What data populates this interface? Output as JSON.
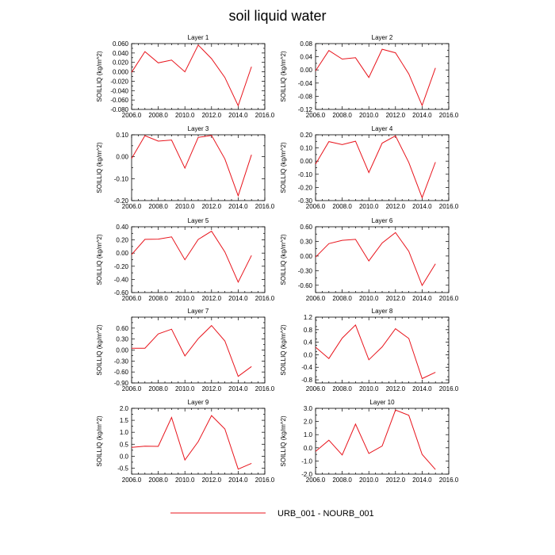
{
  "figure": {
    "title": "soil liquid water",
    "legend": {
      "label": "URB_001 - NOURB_001",
      "color": "#e8141c",
      "placement": "bottom-center"
    }
  },
  "chart_data": [
    {
      "type": "line",
      "title": "Layer 1",
      "ylabel": "SOILLIQ  (kg/m^2)",
      "xlim": [
        2006,
        2016
      ],
      "ylim": [
        -0.08,
        0.06
      ],
      "xticks": [
        "2006.0",
        "2008.0",
        "2010.0",
        "2012.0",
        "2014.0",
        "2016.0"
      ],
      "yticks": [
        "0.060",
        "0.040",
        "0.020",
        "0.000",
        "-0.020",
        "-0.040",
        "-0.060",
        "-0.080"
      ],
      "series": [
        {
          "x": [
            2006,
            2007,
            2008,
            2009,
            2010,
            2011,
            2012,
            2013,
            2014,
            2015
          ],
          "values": [
            -0.001,
            0.043,
            0.019,
            0.025,
            0.0,
            0.057,
            0.028,
            -0.012,
            -0.072,
            0.011
          ]
        }
      ]
    },
    {
      "type": "line",
      "title": "Layer 2",
      "ylabel": "SOILLIQ  (kg/m^2)",
      "xlim": [
        2006,
        2016
      ],
      "ylim": [
        -0.12,
        0.08
      ],
      "xticks": [
        "2006.0",
        "2008.0",
        "2010.0",
        "2012.0",
        "2014.0",
        "2016.0"
      ],
      "yticks": [
        "0.08",
        "0.04",
        "0.00",
        "-0.04",
        "-0.08",
        "-0.12"
      ],
      "series": [
        {
          "x": [
            2006,
            2007,
            2008,
            2009,
            2010,
            2011,
            2012,
            2013,
            2014,
            2015
          ],
          "values": [
            -0.003,
            0.059,
            0.033,
            0.037,
            -0.023,
            0.063,
            0.052,
            -0.012,
            -0.108,
            0.006
          ]
        }
      ]
    },
    {
      "type": "line",
      "title": "Layer 3",
      "ylabel": "SOILLIQ  (kg/m^2)",
      "xlim": [
        2006,
        2016
      ],
      "ylim": [
        -0.2,
        0.1
      ],
      "xticks": [
        "2006.0",
        "2008.0",
        "2010.0",
        "2012.0",
        "2014.0",
        "2016.0"
      ],
      "yticks": [
        "0.10",
        "0.00",
        "-0.10",
        "-0.20"
      ],
      "series": [
        {
          "x": [
            2006,
            2007,
            2008,
            2009,
            2010,
            2011,
            2012,
            2013,
            2014,
            2015
          ],
          "values": [
            -0.008,
            0.096,
            0.071,
            0.076,
            -0.052,
            0.088,
            0.097,
            -0.01,
            -0.178,
            0.009
          ]
        }
      ]
    },
    {
      "type": "line",
      "title": "Layer 4",
      "ylabel": "SOILLIQ  (kg/m^2)",
      "xlim": [
        2006,
        2016
      ],
      "ylim": [
        -0.3,
        0.2
      ],
      "xticks": [
        "2006.0",
        "2008.0",
        "2010.0",
        "2012.0",
        "2014.0",
        "2016.0"
      ],
      "yticks": [
        "0.20",
        "0.10",
        "0.00",
        "-0.10",
        "-0.20",
        "-0.30"
      ],
      "series": [
        {
          "x": [
            2006,
            2007,
            2008,
            2009,
            2010,
            2011,
            2012,
            2013,
            2014,
            2015
          ],
          "values": [
            -0.023,
            0.148,
            0.125,
            0.151,
            -0.087,
            0.137,
            0.192,
            -0.01,
            -0.278,
            -0.008
          ]
        }
      ]
    },
    {
      "type": "line",
      "title": "Layer 5",
      "ylabel": "SOILLIQ  (kg/m^2)",
      "xlim": [
        2006,
        2016
      ],
      "ylim": [
        -0.6,
        0.4
      ],
      "xticks": [
        "2006.0",
        "2008.0",
        "2010.0",
        "2012.0",
        "2014.0",
        "2016.0"
      ],
      "yticks": [
        "0.40",
        "0.20",
        "0.00",
        "-0.20",
        "-0.40",
        "-0.60"
      ],
      "series": [
        {
          "x": [
            2006,
            2007,
            2008,
            2009,
            2010,
            2011,
            2012,
            2013,
            2014,
            2015
          ],
          "values": [
            -0.023,
            0.208,
            0.212,
            0.246,
            -0.101,
            0.207,
            0.332,
            0.018,
            -0.441,
            -0.036
          ]
        }
      ]
    },
    {
      "type": "line",
      "title": "Layer 6",
      "ylabel": "SOILLIQ  (kg/m^2)",
      "xlim": [
        2006,
        2016
      ],
      "ylim": [
        -0.75,
        0.6
      ],
      "xticks": [
        "2006.0",
        "2008.0",
        "2010.0",
        "2012.0",
        "2014.0",
        "2016.0"
      ],
      "yticks": [
        "0.60",
        "0.30",
        "0.00",
        "-0.30",
        "-0.60"
      ],
      "series": [
        {
          "x": [
            2006,
            2007,
            2008,
            2009,
            2010,
            2011,
            2012,
            2013,
            2014,
            2015
          ],
          "values": [
            -0.023,
            0.254,
            0.322,
            0.342,
            -0.101,
            0.267,
            0.482,
            0.096,
            -0.603,
            -0.16
          ]
        }
      ]
    },
    {
      "type": "line",
      "title": "Layer 7",
      "ylabel": "SOILLIQ  (kg/m^2)",
      "xlim": [
        2006,
        2016
      ],
      "ylim": [
        -0.9,
        0.9
      ],
      "xticks": [
        "2006.0",
        "2008.0",
        "2010.0",
        "2012.0",
        "2014.0",
        "2016.0"
      ],
      "yticks": [
        "0.60",
        "0.30",
        "0.00",
        "-0.30",
        "-0.60",
        "-0.90"
      ],
      "series": [
        {
          "x": [
            2006,
            2007,
            2008,
            2009,
            2010,
            2011,
            2012,
            2013,
            2014,
            2015
          ],
          "values": [
            0.05,
            0.05,
            0.44,
            0.57,
            -0.16,
            0.31,
            0.67,
            0.25,
            -0.72,
            -0.45
          ]
        }
      ]
    },
    {
      "type": "line",
      "title": "Layer 8",
      "ylabel": "SOILLIQ  (kg/m^2)",
      "xlim": [
        2006,
        2016
      ],
      "ylim": [
        -0.9,
        1.2
      ],
      "xticks": [
        "2006.0",
        "2008.0",
        "2010.0",
        "2012.0",
        "2014.0",
        "2016.0"
      ],
      "yticks": [
        "1.2",
        "0.8",
        "0.4",
        "0.0",
        "-0.4",
        "-0.8"
      ],
      "series": [
        {
          "x": [
            2006,
            2007,
            2008,
            2009,
            2010,
            2011,
            2012,
            2013,
            2014,
            2015
          ],
          "values": [
            0.24,
            -0.12,
            0.53,
            0.95,
            -0.16,
            0.25,
            0.83,
            0.52,
            -0.76,
            -0.56
          ]
        }
      ]
    },
    {
      "type": "line",
      "title": "Layer 9",
      "ylabel": "SOILLIQ  (kg/m^2)",
      "xlim": [
        2006,
        2016
      ],
      "ylim": [
        -0.75,
        2.0
      ],
      "xticks": [
        "2006.0",
        "2008.0",
        "2010.0",
        "2012.0",
        "2014.0",
        "2016.0"
      ],
      "yticks": [
        "2.0",
        "1.5",
        "1.0",
        "0.5",
        "0.0",
        "-0.5"
      ],
      "series": [
        {
          "x": [
            2006,
            2007,
            2008,
            2009,
            2010,
            2011,
            2012,
            2013,
            2014,
            2015
          ],
          "values": [
            0.37,
            0.42,
            0.41,
            1.62,
            -0.16,
            0.61,
            1.7,
            1.14,
            -0.54,
            -0.3
          ]
        }
      ]
    },
    {
      "type": "line",
      "title": "Layer 10",
      "ylabel": "SOILLIQ  (kg/m^2)",
      "xlim": [
        2006,
        2016
      ],
      "ylim": [
        -2.0,
        3.0
      ],
      "xticks": [
        "2006.0",
        "2008.0",
        "2010.0",
        "2012.0",
        "2014.0",
        "2016.0"
      ],
      "yticks": [
        "3.0",
        "2.0",
        "1.0",
        "0.0",
        "-1.0",
        "-2.0"
      ],
      "series": [
        {
          "x": [
            2006,
            2007,
            2008,
            2009,
            2010,
            2011,
            2012,
            2013,
            2014,
            2015
          ],
          "values": [
            -0.28,
            0.58,
            -0.54,
            1.8,
            -0.43,
            0.14,
            2.87,
            2.47,
            -0.5,
            -1.65
          ]
        }
      ]
    }
  ]
}
